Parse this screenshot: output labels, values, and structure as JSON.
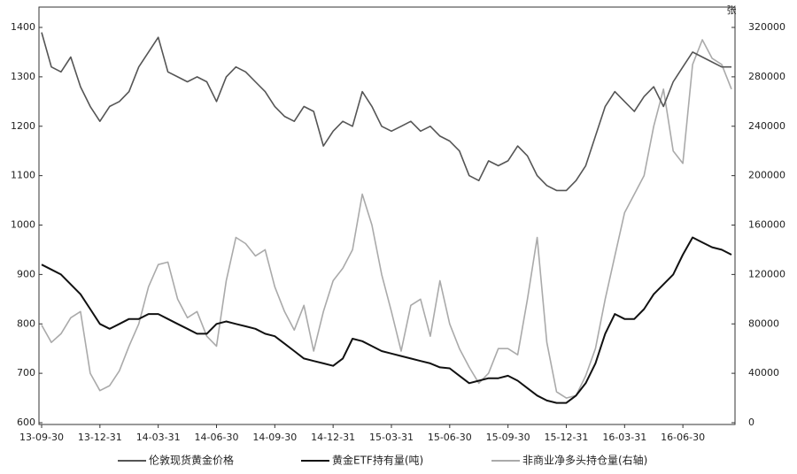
{
  "chart_data": {
    "type": "line",
    "y2label": "张",
    "categories": [
      "13-09-30",
      null,
      null,
      null,
      null,
      null,
      "13-12-31",
      null,
      null,
      null,
      null,
      null,
      "14-03-31",
      null,
      null,
      null,
      null,
      null,
      "14-06-30",
      null,
      null,
      null,
      null,
      null,
      "14-09-30",
      null,
      null,
      null,
      null,
      null,
      "14-12-31",
      null,
      null,
      null,
      null,
      null,
      "15-03-31",
      null,
      null,
      null,
      null,
      null,
      "15-06-30",
      null,
      null,
      null,
      null,
      null,
      "15-09-30",
      null,
      null,
      null,
      null,
      null,
      "15-12-31",
      null,
      null,
      null,
      null,
      null,
      "16-03-31",
      null,
      null,
      null,
      null,
      null,
      "16-06-30",
      null,
      null,
      null,
      null,
      null
    ],
    "ylim": [
      600,
      1400
    ],
    "yticks": [
      600,
      700,
      800,
      900,
      1000,
      1100,
      1200,
      1300,
      1400
    ],
    "y2lim": [
      0,
      320000
    ],
    "y2ticks": [
      0,
      40000,
      80000,
      120000,
      160000,
      200000,
      240000,
      280000,
      320000
    ],
    "legend": "bottom",
    "series": [
      {
        "name": "伦敦现货黄金价格",
        "color": "#555555",
        "values": [
          1390,
          1320,
          1310,
          1340,
          1280,
          1240,
          1210,
          1240,
          1250,
          1270,
          1320,
          1350,
          1380,
          1310,
          1300,
          1290,
          1300,
          1290,
          1250,
          1300,
          1320,
          1310,
          1290,
          1270,
          1240,
          1220,
          1210,
          1240,
          1230,
          1160,
          1190,
          1210,
          1200,
          1270,
          1240,
          1200,
          1190,
          1200,
          1210,
          1190,
          1200,
          1180,
          1170,
          1150,
          1100,
          1090,
          1130,
          1120,
          1130,
          1160,
          1140,
          1100,
          1080,
          1070,
          1070,
          1090,
          1120,
          1180,
          1240,
          1270,
          1250,
          1230,
          1260,
          1280,
          1240,
          1290,
          1320,
          1350,
          1340,
          1330,
          1320,
          1320
        ]
      },
      {
        "name": "黄金ETF持有量(吨)",
        "color": "#111111",
        "values": [
          920,
          910,
          900,
          880,
          860,
          830,
          800,
          790,
          800,
          810,
          810,
          820,
          820,
          810,
          800,
          790,
          780,
          780,
          800,
          805,
          800,
          795,
          790,
          780,
          775,
          760,
          745,
          730,
          725,
          720,
          715,
          730,
          770,
          765,
          755,
          745,
          740,
          735,
          730,
          725,
          720,
          712,
          710,
          695,
          680,
          685,
          690,
          690,
          695,
          685,
          670,
          655,
          645,
          640,
          640,
          655,
          680,
          720,
          780,
          820,
          810,
          810,
          830,
          860,
          880,
          900,
          940,
          975,
          965,
          955,
          950,
          940
        ]
      },
      {
        "name": "非商业净多头持仓量(右轴)",
        "color": "#aaaaaa",
        "axis": "y2",
        "values": [
          79000,
          65000,
          72000,
          85000,
          90000,
          40000,
          26000,
          30000,
          42000,
          62000,
          80000,
          110000,
          128000,
          130000,
          100000,
          85000,
          90000,
          70000,
          62000,
          115000,
          150000,
          145000,
          135000,
          140000,
          110000,
          90000,
          75000,
          95000,
          58000,
          90000,
          115000,
          125000,
          140000,
          185000,
          160000,
          120000,
          90000,
          58000,
          95000,
          100000,
          70000,
          115000,
          80000,
          60000,
          45000,
          32000,
          40000,
          60000,
          60000,
          55000,
          100000,
          150000,
          65000,
          25000,
          20000,
          22000,
          38000,
          60000,
          100000,
          135000,
          170000,
          185000,
          200000,
          240000,
          270000,
          220000,
          210000,
          290000,
          310000,
          295000,
          290000,
          270000
        ]
      }
    ]
  }
}
